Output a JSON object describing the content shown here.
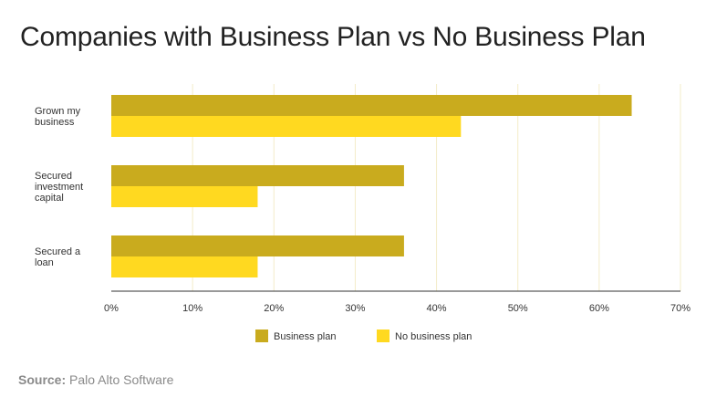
{
  "title": "Companies with Business Plan vs No Business Plan",
  "source": {
    "label": "Source:",
    "text": "Palo Alto Software"
  },
  "colors": {
    "business_plan": "#C9AB1E",
    "no_business_plan": "#FFD920",
    "grid": "#F3ECC8",
    "axis": "#333333"
  },
  "chart_data": {
    "type": "bar",
    "orientation": "horizontal",
    "categories": [
      [
        "Grown my",
        "business"
      ],
      [
        "Secured",
        "investment",
        "capital"
      ],
      [
        "Secured a",
        "loan"
      ]
    ],
    "series": [
      {
        "name": "Business plan",
        "values": [
          64,
          36,
          36
        ]
      },
      {
        "name": "No business plan",
        "values": [
          43,
          18,
          18
        ]
      }
    ],
    "xlim": [
      0,
      70
    ],
    "xticks": [
      "0%",
      "10%",
      "20%",
      "30%",
      "40%",
      "50%",
      "60%",
      "70%"
    ],
    "grid": true,
    "legend": "bottom-center"
  }
}
